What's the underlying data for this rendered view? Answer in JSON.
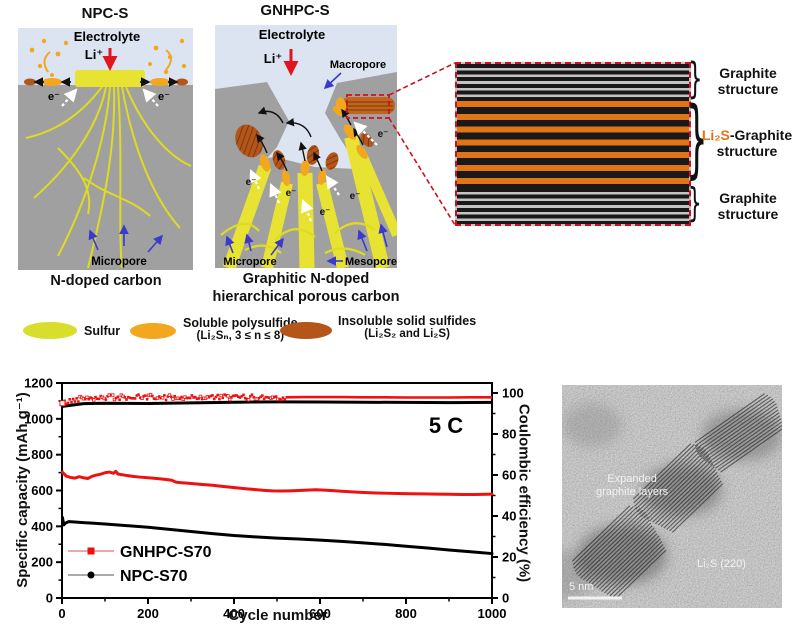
{
  "figure": {
    "npc": {
      "title": "NPC-S",
      "electrolyte_label": "Electrolyte",
      "li_label": "Li⁺",
      "electron_label": "e⁻",
      "micropore_label": "Micropore",
      "caption": "N-doped carbon"
    },
    "gnhpc": {
      "title": "GNHPC-S",
      "electrolyte_label": "Electrolyte",
      "li_label": "Li⁺",
      "macropore_label": "Macropore",
      "electron_label": "e⁻",
      "micropore_label": "Micropore",
      "mesopore_label": "Mesopore",
      "caption_line1": "Graphitic N-doped",
      "caption_line2": "hierarchical porous carbon"
    },
    "stack": {
      "label_top_line1": "Graphite",
      "label_top_line2": "structure",
      "label_mid_li2s": "Li₂S",
      "label_mid_rest": "-Graphite",
      "label_mid_line2": "structure",
      "label_bot_line1": "Graphite",
      "label_bot_line2": "structure"
    }
  },
  "legend": {
    "items": [
      {
        "label": "Sulfur",
        "sub": "",
        "color": "#d8de2c"
      },
      {
        "label": "Soluble polysulfide",
        "sub": "(Li₂Sₙ, 3 ≤ n ≤ 8)",
        "color": "#f2a71f"
      },
      {
        "label": "Insoluble solid sulfides",
        "sub": "(Li₂S₂ and Li₂S)",
        "color": "#b4551a"
      }
    ]
  },
  "chart_data": {
    "type": "line",
    "xlabel": "Cycle number",
    "ylabel_left": "Specific capacity (mAh g⁻¹)",
    "ylabel_right": "Coulombic efficiency (%)",
    "annotation": "5 C",
    "xlim": [
      0,
      1000
    ],
    "ylim_left": [
      0,
      1200
    ],
    "ylim_right": [
      0,
      100
    ],
    "x_ticks": [
      0,
      200,
      400,
      600,
      800,
      1000
    ],
    "y_ticks_left": [
      0,
      200,
      400,
      600,
      800,
      1000,
      1200
    ],
    "y_ticks_right": [
      0,
      20,
      40,
      60,
      80,
      100
    ],
    "grid": false,
    "legend_position": "lower-left",
    "legend_entries": [
      "GNHPC-S70",
      "NPC-S70"
    ],
    "series": [
      {
        "name": "GNHPC-S70 capacity",
        "axis": "left",
        "color": "#ee1111",
        "style": "line",
        "x": [
          1,
          10,
          20,
          30,
          40,
          50,
          60,
          70,
          80,
          90,
          100,
          110,
          120,
          125,
          130,
          140,
          150,
          165,
          180,
          200,
          220,
          240,
          255,
          265,
          275,
          290,
          310,
          330,
          350,
          370,
          390,
          410,
          430,
          450,
          470,
          490,
          510,
          530,
          550,
          570,
          590,
          610,
          630,
          650,
          670,
          690,
          710,
          730,
          750,
          780,
          810,
          840,
          870,
          900,
          930,
          960,
          1000
        ],
        "y": [
          702,
          680,
          673,
          669,
          677,
          671,
          667,
          679,
          686,
          691,
          699,
          703,
          696,
          707,
          692,
          688,
          684,
          679,
          675,
          671,
          667,
          662,
          657,
          647,
          644,
          641,
          637,
          633,
          629,
          624,
          619,
          614,
          609,
          605,
          601,
          598,
          597,
          598,
          600,
          602,
          604,
          602,
          599,
          596,
          593,
          590,
          588,
          586,
          585,
          583,
          582,
          581,
          580,
          579,
          578,
          578,
          580
        ]
      },
      {
        "name": "NPC-S70 capacity",
        "axis": "left",
        "color": "#000000",
        "style": "line",
        "x": [
          1,
          4,
          8,
          15,
          30,
          50,
          75,
          100,
          150,
          200,
          250,
          300,
          350,
          400,
          450,
          500,
          550,
          600,
          650,
          700,
          750,
          800,
          850,
          900,
          950,
          1000
        ],
        "y": [
          450,
          408,
          418,
          426,
          424,
          421,
          417,
          413,
          404,
          395,
          383,
          371,
          359,
          349,
          341,
          334,
          329,
          323,
          316,
          308,
          299,
          289,
          279,
          268,
          258,
          248
        ]
      },
      {
        "name": "GNHPC-S70 coulombic efficiency",
        "axis": "right",
        "color": "#ee1111",
        "style": "scatter-line",
        "noise_until": 520,
        "noise_amp": 1.3,
        "x": [
          1,
          50,
          100,
          150,
          200,
          250,
          300,
          350,
          400,
          450,
          500,
          520,
          560,
          600,
          650,
          700,
          750,
          800,
          850,
          900,
          950,
          1000
        ],
        "y": [
          95,
          97.8,
          97.9,
          97.8,
          98,
          97.9,
          97.8,
          98,
          97.9,
          98,
          97.9,
          97.9,
          98,
          98,
          98,
          97.9,
          97.9,
          97.8,
          97.8,
          97.8,
          97.9,
          97.9
        ]
      },
      {
        "name": "NPC-S70 coulombic efficiency",
        "axis": "right",
        "color": "#000000",
        "style": "line",
        "x": [
          1,
          50,
          100,
          200,
          300,
          400,
          500,
          600,
          700,
          800,
          900,
          1000
        ],
        "y": [
          93.5,
          94.8,
          95.0,
          94.9,
          95.2,
          95.5,
          95.7,
          95.6,
          95.5,
          95.4,
          95.3,
          95.4
        ]
      }
    ]
  },
  "tem": {
    "label1_line1": "Expanded",
    "label1_line2": "graphite layers",
    "label2": "Li₂S (220)",
    "scalebar": "5 nm"
  },
  "icons": {
    "brace": "}"
  },
  "colors": {
    "electrolyte": "#dce4f2",
    "carbon_gray": "#a0a0a0",
    "sulfur_yellow": "#e8e332",
    "polysulfide_orange": "#f2a71f",
    "solid_sulfide_brown": "#b4551a",
    "stack_orange": "#e07417",
    "chart_red": "#ee1111",
    "arrow_blue": "#3a3acc",
    "arrow_red": "#e11422",
    "dash_red": "#cf1020"
  }
}
